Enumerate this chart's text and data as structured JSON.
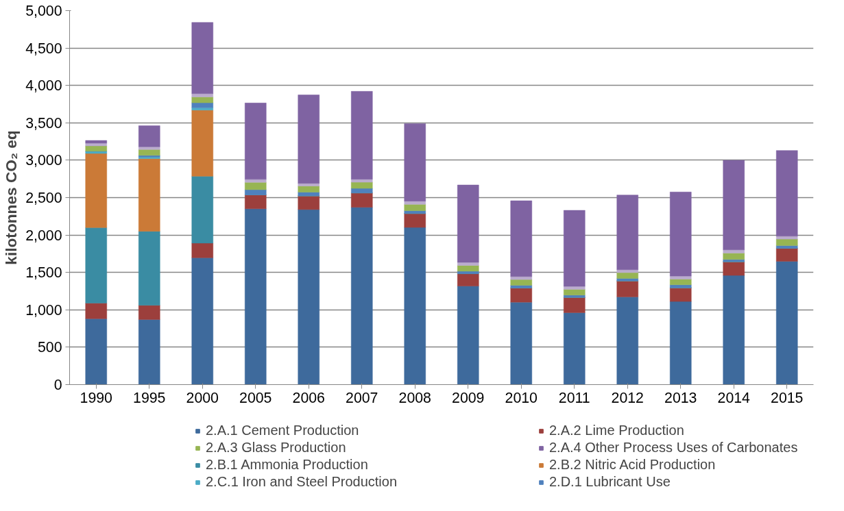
{
  "chart_data": {
    "type": "bar",
    "stacked": true,
    "ylabel": "kilotonnes CO₂ eq",
    "categories": [
      "1990",
      "1995",
      "2000",
      "2005",
      "2006",
      "2007",
      "2008",
      "2009",
      "2010",
      "2011",
      "2012",
      "2013",
      "2014",
      "2015"
    ],
    "series": [
      {
        "name": "2.A.1 Cement Production",
        "color": "#3e6a9c",
        "values": [
          881,
          871,
          1696,
          2351,
          2341,
          2371,
          2102,
          1318,
          1102,
          962,
          1173,
          1112,
          1460,
          1649
        ]
      },
      {
        "name": "2.A.2 Lime Production",
        "color": "#9c3f3c",
        "values": [
          209,
          190,
          196,
          186,
          183,
          192,
          186,
          165,
          190,
          205,
          214,
          183,
          183,
          174
        ]
      },
      {
        "name": "2.B.1 Ammonia Production",
        "color": "#3a8ca3",
        "values": [
          1009,
          989,
          894,
          0,
          0,
          0,
          0,
          0,
          0,
          0,
          0,
          0,
          0,
          0
        ]
      },
      {
        "name": "2.B.2 Nitric Acid Production",
        "color": "#cb7a37",
        "values": [
          992,
          972,
          884,
          0,
          0,
          0,
          0,
          0,
          0,
          0,
          0,
          0,
          0,
          0
        ]
      },
      {
        "name": "2.C.1 Iron and Steel Production",
        "color": "#4bacc6",
        "values": [
          29,
          20,
          33,
          0,
          0,
          0,
          0,
          0,
          0,
          0,
          0,
          0,
          0,
          0
        ]
      },
      {
        "name": "2.D.1 Lubricant Use",
        "color": "#4f81bd",
        "values": [
          0,
          23,
          65,
          69,
          49,
          61,
          37,
          33,
          36,
          30,
          33,
          40,
          30,
          37
        ]
      },
      {
        "name": "2.A.3 Glass Production",
        "color": "#97b553",
        "values": [
          72,
          78,
          79,
          98,
          82,
          82,
          85,
          77,
          77,
          77,
          77,
          76,
          86,
          85
        ]
      },
      {
        "color": "#bbacce",
        "values": [
          36,
          36,
          43,
          40,
          36,
          40,
          43,
          42,
          40,
          40,
          40,
          40,
          43,
          40
        ]
      },
      {
        "name": "2.A.4 Other Process Uses of Carbonates",
        "color": "#7f63a2",
        "values": [
          36,
          282,
          952,
          1021,
          1182,
          1175,
          1037,
          1034,
          1013,
          1016,
          998,
          1124,
          1197,
          1145
        ]
      }
    ],
    "ylim": [
      0,
      5000
    ],
    "yticks": [
      {
        "value": 0,
        "label": "0"
      },
      {
        "value": 500,
        "label": "500"
      },
      {
        "value": 1000,
        "label": "1,000"
      },
      {
        "value": 1500,
        "label": "1,500"
      },
      {
        "value": 2000,
        "label": "2,000"
      },
      {
        "value": 2500,
        "label": "2,500"
      },
      {
        "value": 3000,
        "label": "3,000"
      },
      {
        "value": 3500,
        "label": "3,500"
      },
      {
        "value": 4000,
        "label": "4,000"
      },
      {
        "value": 4500,
        "label": "4,500"
      },
      {
        "value": 5000,
        "label": "5,000"
      }
    ],
    "grid": "y",
    "legend": "bottom"
  }
}
